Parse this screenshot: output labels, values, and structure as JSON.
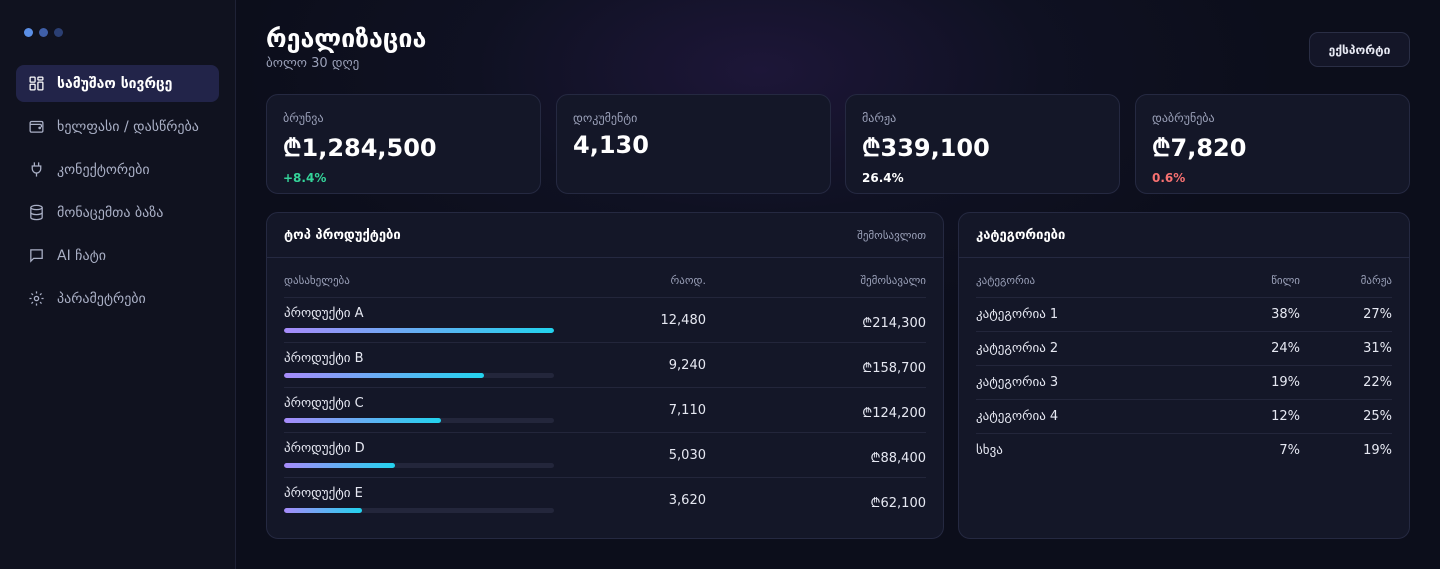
{
  "sidebar": {
    "dot_colors": [
      "#5b8fe6",
      "#3f5fa8",
      "#2b3f73"
    ],
    "items": [
      {
        "label": "სამუშაო სივრცე",
        "icon": "dashboard-icon",
        "active": true
      },
      {
        "label": "ხელფასი / დასწრება",
        "icon": "wallet-icon",
        "active": false
      },
      {
        "label": "კონექტორები",
        "icon": "plug-icon",
        "active": false
      },
      {
        "label": "მონაცემთა ბაზა",
        "icon": "database-icon",
        "active": false
      },
      {
        "label": "AI ჩატი",
        "icon": "chat-icon",
        "active": false
      },
      {
        "label": "პარამეტრები",
        "icon": "gear-icon",
        "active": false
      }
    ]
  },
  "header": {
    "title": "რეალიზაცია",
    "subtitle": "ბოლო 30 დღე",
    "export_label": "ექსპორტი"
  },
  "kpis": [
    {
      "label": "ბრუნვა",
      "value": "₾1,284,500",
      "delta": "+8.4%",
      "delta_color": "#34d399"
    },
    {
      "label": "დოკუმენტი",
      "value": "4,130",
      "delta": "",
      "delta_color": "#ffffff"
    },
    {
      "label": "მარჟა",
      "value": "₾339,100",
      "delta": "26.4%",
      "delta_color": "#ffffff"
    },
    {
      "label": "დაბრუნება",
      "value": "₾7,820",
      "delta": "0.6%",
      "delta_color": "#f87171"
    }
  ],
  "products": {
    "title": "ტოპ პროდუქტები",
    "sort_label": "შემოსავლით",
    "columns": [
      "დასახელება",
      "რაოდ.",
      "შემოსავალი"
    ],
    "rows": [
      {
        "name": "პროდუქტი A",
        "qty": "12,480",
        "revenue": "₾214,300",
        "share": 1.0
      },
      {
        "name": "პროდუქტი B",
        "qty": "9,240",
        "revenue": "₾158,700",
        "share": 0.74
      },
      {
        "name": "პროდუქტი C",
        "qty": "7,110",
        "revenue": "₾124,200",
        "share": 0.58
      },
      {
        "name": "პროდუქტი D",
        "qty": "5,030",
        "revenue": "₾88,400",
        "share": 0.41
      },
      {
        "name": "პროდუქტი E",
        "qty": "3,620",
        "revenue": "₾62,100",
        "share": 0.29
      }
    ]
  },
  "categories": {
    "title": "კატეგორიები",
    "columns": [
      "კატეგორია",
      "წილი",
      "მარჟა"
    ],
    "rows": [
      {
        "name": "კატეგორია 1",
        "share": "38%",
        "margin": "27%"
      },
      {
        "name": "კატეგორია 2",
        "share": "24%",
        "margin": "31%"
      },
      {
        "name": "კატეგორია 3",
        "share": "19%",
        "margin": "22%"
      },
      {
        "name": "კატეგორია 4",
        "share": "12%",
        "margin": "25%"
      },
      {
        "name": "სხვა",
        "share": "7%",
        "margin": "19%"
      }
    ]
  }
}
